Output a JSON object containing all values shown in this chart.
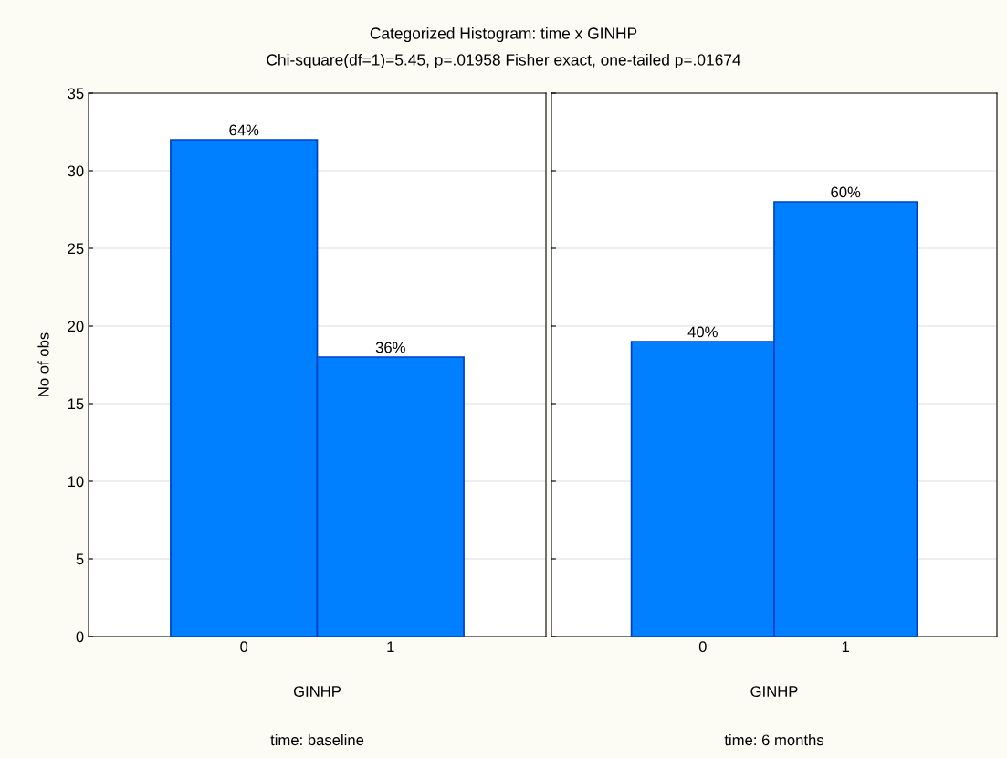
{
  "chart_data": [
    {
      "type": "bar",
      "title": "Categorized Histogram: time x GINHP",
      "subtitle": "Chi-square(df=1)=5.45, p=.01958 Fisher exact, one-tailed p=.01674",
      "xlabel": "GINHP",
      "ylabel": "No of obs",
      "categories": [
        "0",
        "1"
      ],
      "values": [
        32,
        18
      ],
      "color": "#0080ff",
      "ylim": [
        0,
        35
      ],
      "yticks": [
        0,
        5,
        10,
        15,
        20,
        25,
        30,
        35
      ],
      "grid": "y",
      "annotations": [
        "time: baseline",
        {
          "text": "64%",
          "x": "0",
          "y": 32
        },
        {
          "text": "36%",
          "x": "1",
          "y": 18
        }
      ]
    },
    {
      "type": "bar",
      "xlabel": "GINHP",
      "categories": [
        "0",
        "1"
      ],
      "values": [
        19,
        28
      ],
      "color": "#0080ff",
      "ylim": [
        0,
        35
      ],
      "yticks": [
        0,
        5,
        10,
        15,
        20,
        25,
        30,
        35
      ],
      "grid": "y",
      "tick_labels": "x",
      "annotations": [
        "time: 6 months",
        {
          "text": "40%",
          "x": "0",
          "y": 19
        },
        {
          "text": "60%",
          "x": "1",
          "y": 28
        }
      ]
    }
  ]
}
